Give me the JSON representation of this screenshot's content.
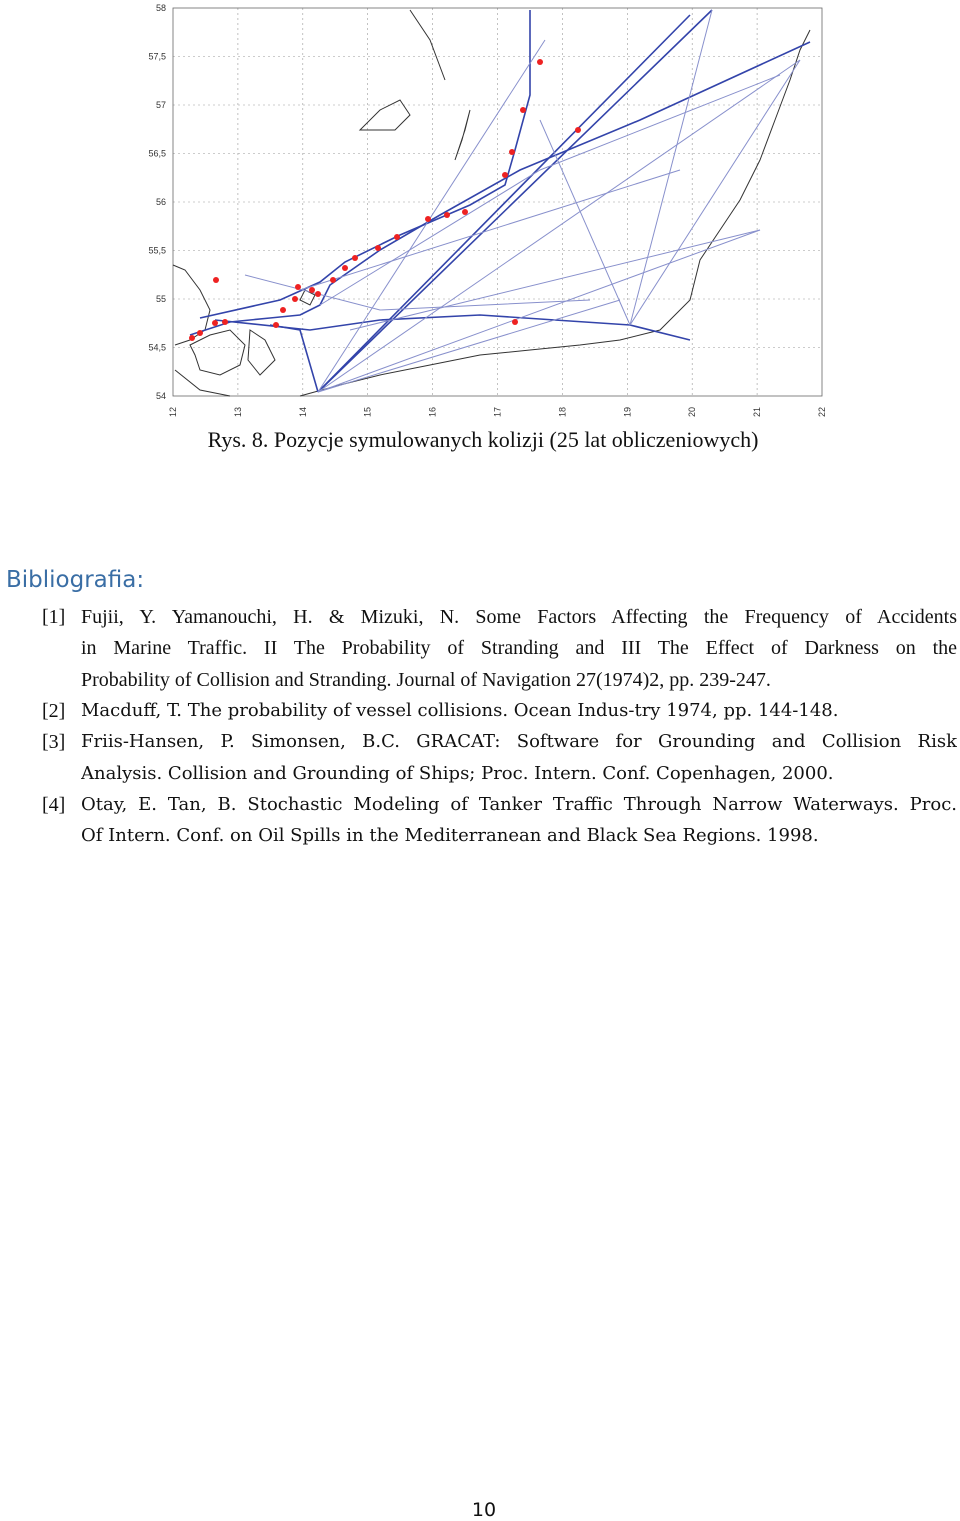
{
  "figure": {
    "y_labels": [
      "58",
      "57,5",
      "57",
      "56,5",
      "56",
      "55,5",
      "55",
      "54,5",
      "54"
    ],
    "x_labels": [
      "12",
      "13",
      "14",
      "15",
      "16",
      "17",
      "18",
      "19",
      "20",
      "21",
      "22"
    ],
    "caption": "Rys. 8.  Pozycje symulowanych kolizji (25 lat obliczeniowych)"
  },
  "bibliography": {
    "heading": "Bibliografia:",
    "references": [
      {
        "number": "[1]",
        "lines": [
          "Fujii, Y. Yamanouchi, H. & Mizuki, N. Some Factors Affecting the Frequency of Accidents",
          "in Marine Traffic. II  The Probability of Stranding and III  The Effect of Darkness on the",
          "Probability of Collision and Stranding. Journal of Navigation 27(1974)2, pp. 239-247."
        ]
      },
      {
        "number": "[2]",
        "lines": [
          "Macduff, T. The probability of vessel collisions. Ocean Indus-try 1974, pp. 144-148."
        ]
      },
      {
        "number": "[3]",
        "lines": [
          "Friis-Hansen, P. Simonsen, B.C. GRACAT: Software for Grounding and Collision Risk",
          "Analysis. Collision and Grounding of Ships; Proc. Intern. Conf. Copenhagen, 2000."
        ]
      },
      {
        "number": "[4]",
        "lines": [
          "Otay, E. Tan, B. Stochastic Modeling of Tanker Traffic Through Narrow Waterways. Proc.",
          "Of Intern. Conf. on Oil Spills in the Mediterranean and Black Sea Regions. 1998."
        ]
      }
    ]
  },
  "footer": {
    "page_number": "10"
  }
}
